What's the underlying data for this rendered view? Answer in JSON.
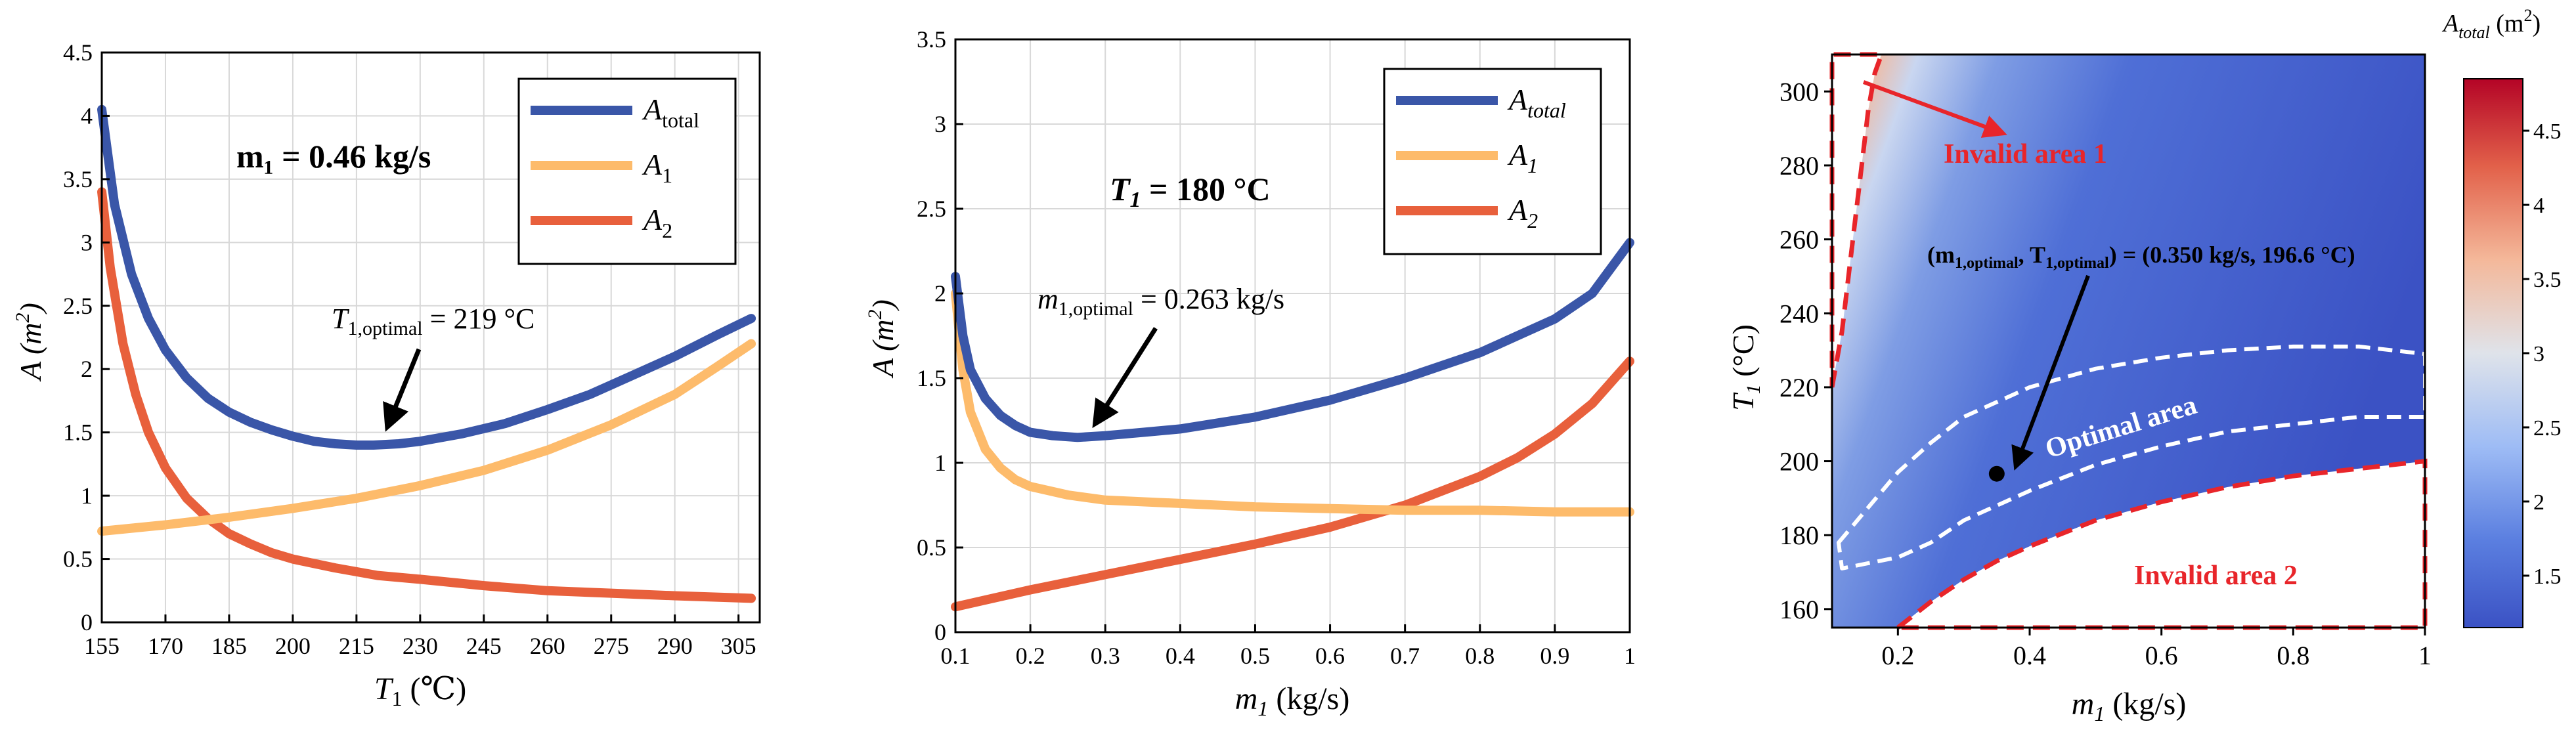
{
  "chart_data": [
    {
      "type": "line",
      "panel": "left",
      "title": "",
      "xlabel_main": "T",
      "xlabel_sub": "1",
      "xlabel_unit": " (℃)",
      "ylabel_main": "A (m",
      "ylabel_sup": "2",
      "ylabel_tail": ")",
      "xlim": [
        155,
        310
      ],
      "ylim": [
        0,
        4.5
      ],
      "x_ticks": [
        155,
        170,
        185,
        200,
        215,
        230,
        245,
        260,
        275,
        290,
        305
      ],
      "y_ticks": [
        0,
        0.5,
        1,
        1.5,
        2,
        2.5,
        3,
        3.5,
        4,
        4.5
      ],
      "grid": true,
      "legend_position": "top-right",
      "series": [
        {
          "name": "A",
          "name_sub": "total",
          "color": "#3a56a8",
          "x": [
            155,
            158,
            162,
            166,
            170,
            175,
            180,
            185,
            190,
            195,
            200,
            205,
            210,
            215,
            219,
            225,
            230,
            240,
            250,
            260,
            270,
            280,
            290,
            300,
            308
          ],
          "y": [
            4.05,
            3.3,
            2.75,
            2.4,
            2.15,
            1.93,
            1.77,
            1.66,
            1.58,
            1.52,
            1.47,
            1.43,
            1.41,
            1.4,
            1.4,
            1.41,
            1.43,
            1.49,
            1.57,
            1.68,
            1.8,
            1.95,
            2.1,
            2.27,
            2.4
          ]
        },
        {
          "name": "A",
          "name_sub": "1",
          "color": "#fdbb6b",
          "x": [
            155,
            170,
            185,
            200,
            215,
            230,
            245,
            260,
            275,
            290,
            300,
            308
          ],
          "y": [
            0.72,
            0.77,
            0.83,
            0.9,
            0.98,
            1.08,
            1.2,
            1.36,
            1.56,
            1.8,
            2.02,
            2.2
          ]
        },
        {
          "name": "A",
          "name_sub": "2",
          "color": "#e8603c",
          "x": [
            155,
            157,
            160,
            163,
            166,
            170,
            175,
            180,
            185,
            190,
            195,
            200,
            210,
            220,
            230,
            245,
            260,
            275,
            290,
            308
          ],
          "y": [
            3.4,
            2.8,
            2.2,
            1.8,
            1.5,
            1.22,
            0.98,
            0.82,
            0.7,
            0.62,
            0.55,
            0.5,
            0.43,
            0.37,
            0.34,
            0.29,
            0.25,
            0.23,
            0.21,
            0.19
          ]
        }
      ],
      "annotations": {
        "condition_label": "m₁ = 0.46 kg/s",
        "optimum_main": "T",
        "optimum_sub": "1,optimal",
        "optimum_tail": " = 219 °C",
        "optimum_point": [
          219,
          1.4
        ]
      }
    },
    {
      "type": "line",
      "panel": "middle",
      "title": "",
      "xlabel_main": "m",
      "xlabel_sub": "1",
      "xlabel_unit": " (kg/s)",
      "ylabel_main": "A (m",
      "ylabel_sup": "2",
      "ylabel_tail": ")",
      "xlim": [
        0.1,
        1.0
      ],
      "ylim": [
        0,
        3.5
      ],
      "x_ticks": [
        0.1,
        0.2,
        0.3,
        0.4,
        0.5,
        0.6,
        0.7,
        0.8,
        0.9,
        1
      ],
      "y_ticks": [
        0,
        0.5,
        1,
        1.5,
        2,
        2.5,
        3,
        3.5
      ],
      "grid": true,
      "legend_position": "top-right",
      "series": [
        {
          "name": "A",
          "name_sub": "total",
          "color": "#3a56a8",
          "x": [
            0.1,
            0.11,
            0.12,
            0.14,
            0.16,
            0.18,
            0.2,
            0.23,
            0.263,
            0.3,
            0.35,
            0.4,
            0.5,
            0.6,
            0.7,
            0.8,
            0.9,
            0.95,
            1.0
          ],
          "y": [
            2.1,
            1.75,
            1.55,
            1.38,
            1.28,
            1.22,
            1.18,
            1.16,
            1.15,
            1.16,
            1.18,
            1.2,
            1.27,
            1.37,
            1.5,
            1.65,
            1.85,
            2.0,
            2.3
          ]
        },
        {
          "name": "A",
          "name_sub": "1",
          "color": "#fdbb6b",
          "x": [
            0.1,
            0.11,
            0.12,
            0.14,
            0.16,
            0.18,
            0.2,
            0.25,
            0.3,
            0.4,
            0.5,
            0.6,
            0.7,
            0.8,
            0.9,
            1.0
          ],
          "y": [
            2.0,
            1.55,
            1.3,
            1.08,
            0.97,
            0.9,
            0.86,
            0.81,
            0.78,
            0.76,
            0.74,
            0.73,
            0.72,
            0.72,
            0.71,
            0.71
          ]
        },
        {
          "name": "A",
          "name_sub": "2",
          "color": "#e8603c",
          "x": [
            0.1,
            0.2,
            0.3,
            0.4,
            0.5,
            0.6,
            0.7,
            0.8,
            0.85,
            0.9,
            0.95,
            1.0
          ],
          "y": [
            0.15,
            0.25,
            0.34,
            0.43,
            0.52,
            0.62,
            0.75,
            0.92,
            1.03,
            1.17,
            1.35,
            1.6
          ]
        }
      ],
      "annotations": {
        "condition_label": "T",
        "condition_sub": "1",
        "condition_tail": " = 180 °C",
        "optimum_main": "m",
        "optimum_sub": "1,optimal",
        "optimum_tail": " = 0.263 kg/s",
        "optimum_point": [
          0.263,
          1.15
        ]
      }
    },
    {
      "type": "heatmap",
      "panel": "right",
      "title": "",
      "xlabel_main": "m",
      "xlabel_sub": "1",
      "xlabel_unit": " (kg/s)",
      "ylabel_main": "T",
      "ylabel_sub": "1",
      "ylabel_tail": " (°C)",
      "xlim": [
        0.1,
        1.0
      ],
      "ylim": [
        155,
        310
      ],
      "x_ticks": [
        0.2,
        0.4,
        0.6,
        0.8,
        1
      ],
      "y_ticks": [
        160,
        180,
        200,
        220,
        240,
        260,
        280,
        300
      ],
      "colorbar": {
        "label_main": "A",
        "label_sub": "total",
        "label_unit": " (m",
        "label_sup": "2",
        "label_tail": ")",
        "range": [
          1.15,
          4.85
        ],
        "ticks": [
          1.5,
          2,
          2.5,
          3,
          3.5,
          4,
          4.5
        ],
        "colors": [
          "#3b52c4",
          "#5b7fe0",
          "#9ebcf5",
          "#dfe3ea",
          "#f4b89a",
          "#e2614a",
          "#b40426"
        ]
      },
      "invalid_area_1_boundary": {
        "m1": [
          0.1,
          0.115,
          0.125,
          0.135,
          0.145,
          0.155,
          0.165,
          0.175
        ],
        "T1": [
          220,
          235,
          250,
          265,
          280,
          295,
          305,
          310
        ]
      },
      "invalid_area_2_boundary": {
        "m1": [
          0.2,
          0.25,
          0.3,
          0.35,
          0.4,
          0.5,
          0.6,
          0.7,
          0.8,
          0.9,
          1.0
        ],
        "T1": [
          155,
          162,
          168,
          173,
          177,
          184,
          189,
          193,
          196,
          198,
          200
        ]
      },
      "optimal_area_boundary": {
        "m1": [
          0.11,
          0.2,
          0.25,
          0.3,
          0.4,
          0.5,
          0.6,
          0.7,
          0.8,
          0.9,
          1.0,
          1.0,
          0.9,
          0.8,
          0.7,
          0.6,
          0.5,
          0.4,
          0.3,
          0.25,
          0.2,
          0.115,
          0.11
        ],
        "T1": [
          178,
          197,
          205,
          212,
          220,
          225,
          228,
          230,
          231,
          231,
          229,
          212,
          212,
          210,
          208,
          204,
          199,
          192,
          184,
          178,
          174,
          171,
          178
        ]
      },
      "annotations": {
        "invalid_1": "Invalid area 1",
        "invalid_2": "Invalid area 2",
        "optimal_area": "Optimal area",
        "optimum_a": "(m",
        "optimum_a_sub": "1,optimal",
        "optimum_b": ", T",
        "optimum_b_sub": "1,optimal",
        "optimum_c": ") = (0.350 kg/s, 196.6 °C)",
        "optimum_point": [
          0.35,
          196.6
        ]
      }
    }
  ]
}
